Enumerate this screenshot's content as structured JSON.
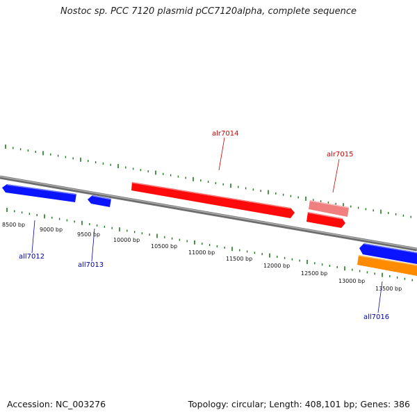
{
  "title": "Nostoc sp. PCC 7120 plasmid pCC7120alpha, complete sequence",
  "footer": {
    "accession": "Accession: NC_003276",
    "info": "Topology: circular; Length: 408,101 bp; Genes: 386"
  },
  "bp_labels": [
    "8500 bp",
    "9000 bp",
    "9500 bp",
    "10000 bp",
    "10500 bp",
    "11000 bp",
    "11500 bp",
    "12000 bp",
    "12500 bp",
    "13000 bp",
    "13500 bp"
  ],
  "genes": [
    {
      "name": "all7012",
      "strand": "reverse",
      "color": "#0a14ff"
    },
    {
      "name": "all7013",
      "strand": "reverse",
      "color": "#0a14ff"
    },
    {
      "name": "alr7014",
      "strand": "forward",
      "color": "#ff0a0a"
    },
    {
      "name": "alr7015",
      "strand": "forward",
      "color": "#ff0a0a"
    },
    {
      "name": "all7016",
      "strand": "reverse",
      "color": "#0a14ff"
    }
  ],
  "colors": {
    "backbone": "#808080",
    "tick": "#1a7a1a",
    "forward_label": "#cc0000",
    "reverse_label": "#0000aa",
    "orange": "#ff8c00",
    "pink": "#f08080"
  }
}
